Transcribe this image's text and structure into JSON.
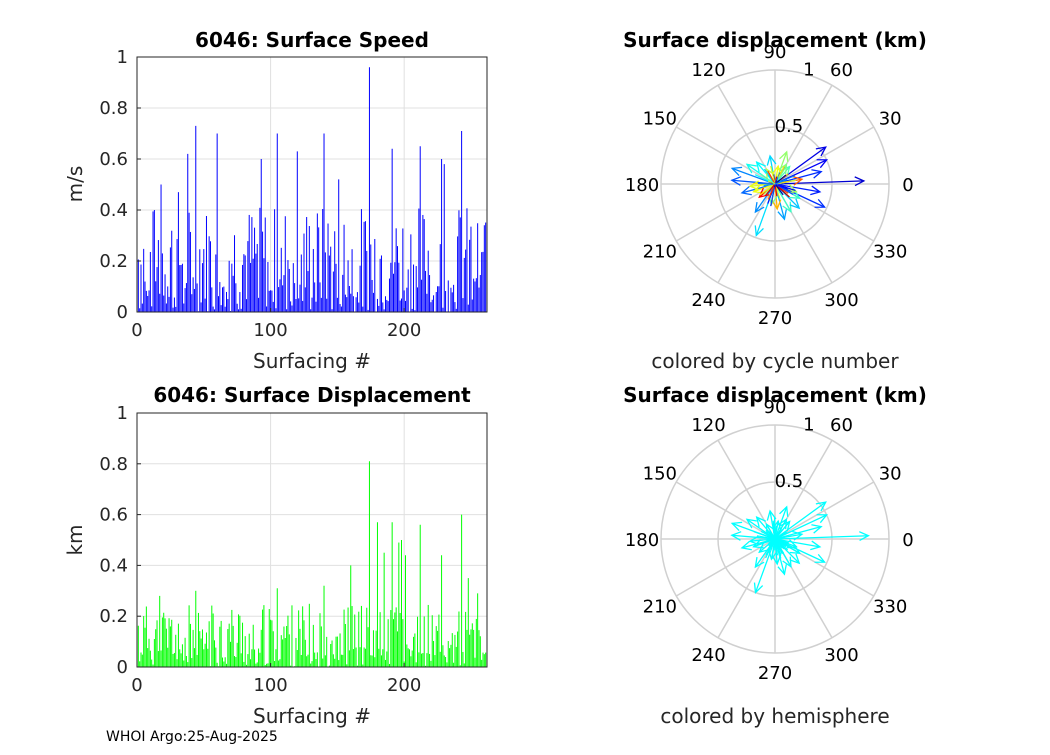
{
  "figure": {
    "footer": "WHOI Argo:25-Aug-2025"
  },
  "chart_data": [
    {
      "type": "bar",
      "title": "6046: Surface Speed",
      "xlabel": "Surfacing #",
      "ylabel": "m/s",
      "xlim": [
        0,
        262
      ],
      "ylim": [
        0,
        1
      ],
      "xticks": [
        0,
        100,
        200
      ],
      "yticks": [
        0,
        0.2,
        0.4,
        0.6,
        0.8,
        1
      ],
      "ytick_labels": [
        "0",
        "0.2",
        "0.4",
        "0.6",
        "0.8",
        "1"
      ],
      "color": "#0000ff",
      "highlights": [
        [
          44,
          0.73
        ],
        [
          174,
          0.96
        ],
        [
          140,
          0.7
        ],
        [
          243,
          0.71
        ],
        [
          38,
          0.62
        ],
        [
          60,
          0.7
        ],
        [
          93,
          0.6
        ],
        [
          105,
          0.7
        ],
        [
          120,
          0.63
        ],
        [
          191,
          0.64
        ],
        [
          212,
          0.65
        ],
        [
          228,
          0.6
        ],
        [
          13,
          0.4
        ],
        [
          18,
          0.5
        ],
        [
          31,
          0.47
        ],
        [
          151,
          0.52
        ],
        [
          230,
          0.58
        ]
      ],
      "n": 262,
      "seed": 7,
      "base_max": 0.42
    },
    {
      "type": "bar",
      "title": "6046: Surface Displacement",
      "xlabel": "Surfacing #",
      "ylabel": "km",
      "xlim": [
        0,
        262
      ],
      "ylim": [
        0,
        1
      ],
      "xticks": [
        0,
        100,
        200
      ],
      "yticks": [
        0,
        0.2,
        0.4,
        0.6,
        0.8,
        1
      ],
      "ytick_labels": [
        "0",
        "0.2",
        "0.4",
        "0.6",
        "0.8",
        "1"
      ],
      "color": "#00ff00",
      "highlights": [
        [
          174,
          0.81
        ],
        [
          180,
          0.57
        ],
        [
          243,
          0.6
        ],
        [
          44,
          0.3
        ],
        [
          17,
          0.28
        ],
        [
          105,
          0.31
        ],
        [
          140,
          0.32
        ],
        [
          191,
          0.57
        ],
        [
          212,
          0.56
        ],
        [
          228,
          0.44
        ],
        [
          196,
          0.49
        ],
        [
          198,
          0.5
        ],
        [
          160,
          0.4
        ],
        [
          185,
          0.45
        ],
        [
          201,
          0.44
        ],
        [
          248,
          0.35
        ],
        [
          255,
          0.29
        ]
      ],
      "n": 262,
      "seed": 11,
      "base_max": 0.25
    },
    {
      "type": "polar-vectors",
      "title": "Surface displacement (km)",
      "xlabel": "colored by cycle number",
      "rlim": [
        0,
        1
      ],
      "rticks": [
        "0.5",
        "1"
      ],
      "angle_labels": [
        "0",
        "30",
        "60",
        "90",
        "120",
        "150",
        "180",
        "210",
        "240",
        "270",
        "300",
        "330"
      ],
      "colormap": "jet",
      "vectors": [
        [
          0.78,
          2
        ],
        [
          0.55,
          36
        ],
        [
          0.5,
          25
        ],
        [
          0.42,
          15
        ],
        [
          0.4,
          -10
        ],
        [
          0.48,
          -25
        ],
        [
          0.4,
          160
        ],
        [
          0.38,
          175
        ],
        [
          0.3,
          195
        ],
        [
          0.48,
          250
        ],
        [
          0.3,
          235
        ],
        [
          0.32,
          285
        ],
        [
          0.28,
          300
        ],
        [
          0.3,
          315
        ],
        [
          0.25,
          100
        ],
        [
          0.3,
          70
        ],
        [
          0.25,
          130
        ],
        [
          0.3,
          145
        ],
        [
          0.2,
          200
        ],
        [
          0.25,
          330
        ],
        [
          0.2,
          50
        ],
        [
          0.22,
          275
        ],
        [
          0.18,
          260
        ],
        [
          0.2,
          60
        ],
        [
          0.24,
          10
        ],
        [
          0.2,
          340
        ],
        [
          0.15,
          120
        ],
        [
          0.18,
          220
        ],
        [
          0.22,
          185
        ],
        [
          0.16,
          80
        ]
      ]
    },
    {
      "type": "polar-vectors",
      "title": "Surface displacement (km)",
      "xlabel": "colored by hemisphere",
      "rlim": [
        0,
        1
      ],
      "rticks": [
        "0.5",
        "1"
      ],
      "angle_labels": [
        "0",
        "30",
        "60",
        "90",
        "120",
        "150",
        "180",
        "210",
        "240",
        "270",
        "300",
        "330"
      ],
      "color": "#00ffff",
      "vectors": [
        [
          0.82,
          2
        ],
        [
          0.55,
          36
        ],
        [
          0.5,
          25
        ],
        [
          0.42,
          15
        ],
        [
          0.4,
          -10
        ],
        [
          0.48,
          -25
        ],
        [
          0.4,
          160
        ],
        [
          0.38,
          175
        ],
        [
          0.3,
          195
        ],
        [
          0.5,
          250
        ],
        [
          0.3,
          235
        ],
        [
          0.32,
          285
        ],
        [
          0.28,
          300
        ],
        [
          0.3,
          315
        ],
        [
          0.25,
          100
        ],
        [
          0.3,
          70
        ],
        [
          0.25,
          130
        ],
        [
          0.3,
          145
        ],
        [
          0.2,
          200
        ],
        [
          0.25,
          330
        ],
        [
          0.2,
          50
        ],
        [
          0.22,
          275
        ],
        [
          0.18,
          260
        ],
        [
          0.2,
          60
        ],
        [
          0.24,
          10
        ],
        [
          0.2,
          340
        ],
        [
          0.15,
          120
        ],
        [
          0.18,
          220
        ],
        [
          0.22,
          185
        ],
        [
          0.16,
          80
        ]
      ]
    }
  ]
}
